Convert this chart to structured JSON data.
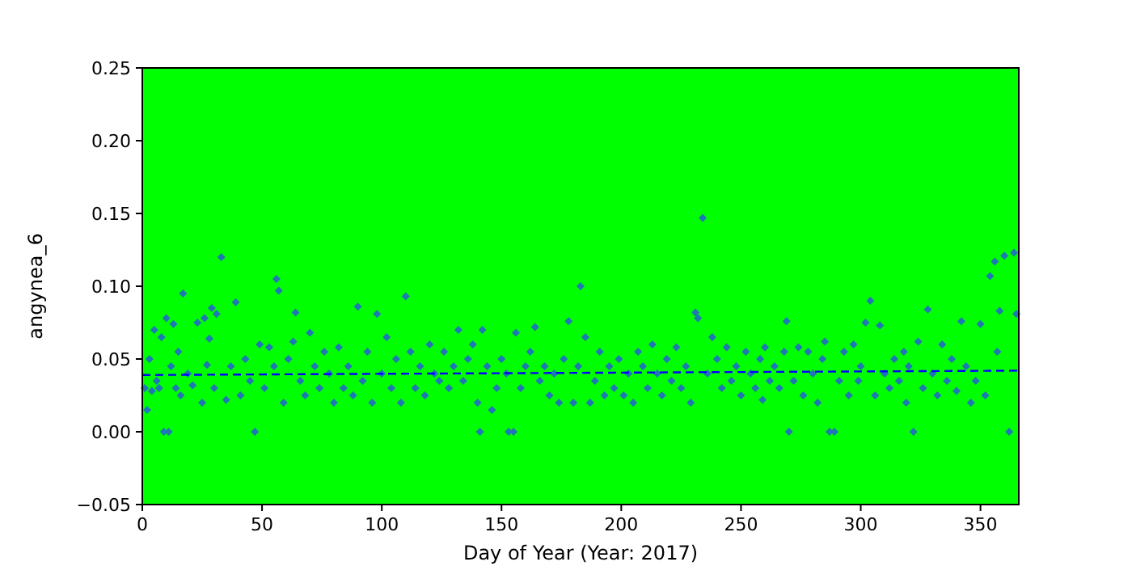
{
  "chart_data": {
    "type": "scatter",
    "xlabel": "Day of Year (Year: 2017)",
    "ylabel": "angynea_6",
    "xlim": [
      0,
      366
    ],
    "ylim": [
      -0.05,
      0.25
    ],
    "xticks": [
      0,
      50,
      100,
      150,
      200,
      250,
      300,
      350
    ],
    "yticks": [
      {
        "value": -0.05,
        "label": "−0.05"
      },
      {
        "value": 0,
        "label": "0.00"
      },
      0.05,
      {
        "value": 0.1,
        "label": "0.10"
      },
      0.15,
      {
        "value": 0.2,
        "label": "0.20"
      },
      0.25
    ],
    "grid": false,
    "series": [
      {
        "color": "#1f77b4",
        "marker": "diamond",
        "x": [
          1,
          2,
          3,
          4,
          5,
          6,
          7,
          8,
          9,
          10,
          11,
          12,
          13,
          14,
          15,
          16,
          17,
          19,
          21,
          23,
          25,
          26,
          27,
          28,
          29,
          30,
          31,
          33,
          35,
          37,
          39,
          41,
          43,
          45,
          47,
          49,
          51,
          53,
          55,
          56,
          57,
          59,
          61,
          63,
          64,
          66,
          68,
          70,
          72,
          74,
          76,
          78,
          80,
          82,
          84,
          86,
          88,
          90,
          92,
          94,
          96,
          98,
          100,
          102,
          104,
          106,
          108,
          110,
          112,
          114,
          116,
          118,
          120,
          122,
          124,
          126,
          128,
          130,
          132,
          134,
          136,
          138,
          140,
          141,
          142,
          144,
          146,
          148,
          150,
          152,
          153,
          155,
          156,
          158,
          160,
          162,
          164,
          166,
          168,
          170,
          172,
          174,
          176,
          178,
          180,
          182,
          183,
          185,
          187,
          189,
          191,
          193,
          195,
          197,
          199,
          201,
          203,
          205,
          207,
          209,
          211,
          213,
          215,
          217,
          219,
          221,
          223,
          225,
          227,
          229,
          231,
          232,
          234,
          236,
          238,
          240,
          242,
          244,
          246,
          248,
          250,
          252,
          254,
          256,
          258,
          259,
          260,
          262,
          264,
          266,
          268,
          269,
          270,
          272,
          274,
          276,
          278,
          280,
          282,
          284,
          285,
          287,
          289,
          291,
          293,
          295,
          297,
          299,
          300,
          302,
          304,
          306,
          308,
          310,
          312,
          314,
          316,
          318,
          319,
          320,
          322,
          324,
          326,
          328,
          330,
          332,
          334,
          336,
          338,
          340,
          342,
          344,
          346,
          348,
          350,
          352,
          354,
          356,
          357,
          358,
          360,
          362,
          364,
          365
        ],
        "values": [
          0.03,
          0.015,
          0.05,
          0.028,
          0.07,
          0.035,
          0.03,
          0.065,
          0,
          0.078,
          0,
          0.045,
          0.074,
          0.03,
          0.055,
          0.025,
          0.095,
          0.04,
          0.032,
          0.075,
          0.02,
          0.078,
          0.046,
          0.064,
          0.085,
          0.03,
          0.081,
          0.12,
          0.022,
          0.045,
          0.089,
          0.025,
          0.05,
          0.035,
          0,
          0.06,
          0.03,
          0.058,
          0.045,
          0.105,
          0.097,
          0.02,
          0.05,
          0.062,
          0.082,
          0.035,
          0.025,
          0.068,
          0.045,
          0.03,
          0.055,
          0.04,
          0.02,
          0.058,
          0.03,
          0.045,
          0.025,
          0.086,
          0.035,
          0.055,
          0.02,
          0.081,
          0.04,
          0.065,
          0.03,
          0.05,
          0.02,
          0.093,
          0.055,
          0.03,
          0.045,
          0.025,
          0.06,
          0.04,
          0.035,
          0.055,
          0.03,
          0.045,
          0.07,
          0.035,
          0.05,
          0.06,
          0.02,
          0,
          0.07,
          0.045,
          0.015,
          0.03,
          0.05,
          0.04,
          0,
          0,
          0.068,
          0.03,
          0.045,
          0.055,
          0.072,
          0.035,
          0.045,
          0.025,
          0.04,
          0.02,
          0.05,
          0.076,
          0.02,
          0.045,
          0.1,
          0.065,
          0.02,
          0.035,
          0.055,
          0.025,
          0.045,
          0.03,
          0.05,
          0.025,
          0.04,
          0.02,
          0.055,
          0.045,
          0.03,
          0.06,
          0.04,
          0.025,
          0.05,
          0.035,
          0.058,
          0.03,
          0.045,
          0.02,
          0.082,
          0.078,
          0.147,
          0.04,
          0.065,
          0.05,
          0.03,
          0.058,
          0.035,
          0.045,
          0.025,
          0.055,
          0.04,
          0.03,
          0.05,
          0.022,
          0.058,
          0.035,
          0.045,
          0.03,
          0.055,
          0.076,
          0,
          0.035,
          0.058,
          0.025,
          0.055,
          0.04,
          0.02,
          0.05,
          0.062,
          0,
          0,
          0.035,
          0.055,
          0.025,
          0.06,
          0.035,
          0.045,
          0.075,
          0.09,
          0.025,
          0.073,
          0.04,
          0.03,
          0.05,
          0.035,
          0.055,
          0.02,
          0.045,
          0,
          0.062,
          0.03,
          0.084,
          0.04,
          0.025,
          0.06,
          0.035,
          0.05,
          0.028,
          0.076,
          0.045,
          0.02,
          0.035,
          0.074,
          0.025,
          0.107,
          0.117,
          0.055,
          0.083,
          0.121,
          0,
          0.123,
          0.081
        ]
      },
      {
        "type": "line",
        "color": "#0000ff",
        "line_style": "dashed",
        "marker": "none",
        "x": [
          0,
          366
        ],
        "values": [
          0.039,
          0.042
        ]
      }
    ]
  }
}
